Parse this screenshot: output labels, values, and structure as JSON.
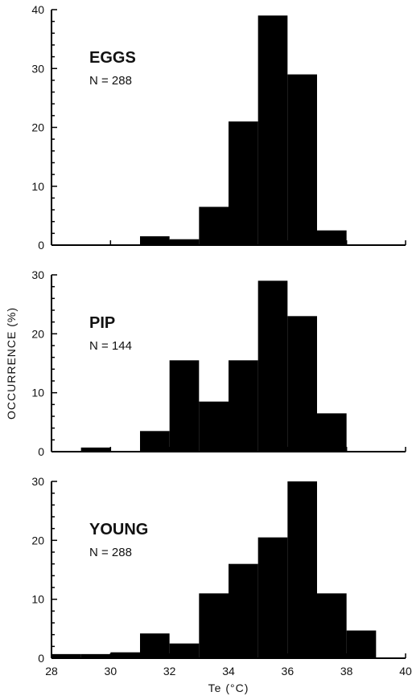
{
  "chart_data": [
    {
      "type": "bar",
      "title": "EGGS",
      "subtitle": "N = 288",
      "xlabel": "",
      "ylabel": "",
      "bins": [
        [
          29,
          30
        ],
        [
          30,
          31
        ],
        [
          31,
          32
        ],
        [
          32,
          33
        ],
        [
          33,
          34
        ],
        [
          34,
          35
        ],
        [
          35,
          36
        ],
        [
          36,
          37
        ],
        [
          37,
          38
        ],
        [
          38,
          39
        ]
      ],
      "values": [
        0,
        0,
        1.5,
        1.0,
        6.5,
        21,
        39,
        29,
        2.5,
        0
      ],
      "ylim": [
        0,
        40
      ],
      "yticks": [
        "0",
        "10",
        "20",
        "30",
        "40"
      ],
      "xlim": [
        28,
        40
      ],
      "grid": false
    },
    {
      "type": "bar",
      "title": "PIP",
      "subtitle": "N = 144",
      "xlabel": "",
      "ylabel": "OCCURRENCE (%)",
      "bins": [
        [
          29,
          30
        ],
        [
          30,
          31
        ],
        [
          31,
          32
        ],
        [
          32,
          33
        ],
        [
          33,
          34
        ],
        [
          34,
          35
        ],
        [
          35,
          36
        ],
        [
          36,
          37
        ],
        [
          37,
          38
        ],
        [
          38,
          39
        ]
      ],
      "values": [
        0.7,
        0,
        3.5,
        15.5,
        8.5,
        15.5,
        29,
        23,
        6.5,
        0
      ],
      "ylim": [
        0,
        30
      ],
      "yticks": [
        "0",
        "10",
        "20",
        "30"
      ],
      "xlim": [
        28,
        40
      ],
      "grid": false
    },
    {
      "type": "bar",
      "title": "YOUNG",
      "subtitle": "N = 288",
      "xlabel": "Te (°C)",
      "ylabel": "",
      "bins": [
        [
          28,
          29
        ],
        [
          29,
          30
        ],
        [
          30,
          31
        ],
        [
          31,
          32
        ],
        [
          32,
          33
        ],
        [
          33,
          34
        ],
        [
          34,
          35
        ],
        [
          35,
          36
        ],
        [
          36,
          37
        ],
        [
          37,
          38
        ],
        [
          38,
          39
        ]
      ],
      "values": [
        0.7,
        0.7,
        1.0,
        4.2,
        2.5,
        11,
        16,
        20.5,
        30,
        11,
        4.7
      ],
      "ylim": [
        0,
        30
      ],
      "yticks": [
        "0",
        "10",
        "20",
        "30"
      ],
      "xlim": [
        28,
        40
      ],
      "xticks": [
        "28",
        "30",
        "32",
        "34",
        "36",
        "38",
        "40"
      ],
      "grid": false
    }
  ],
  "colors": {
    "bars": "#000000",
    "axes": "#000000"
  }
}
